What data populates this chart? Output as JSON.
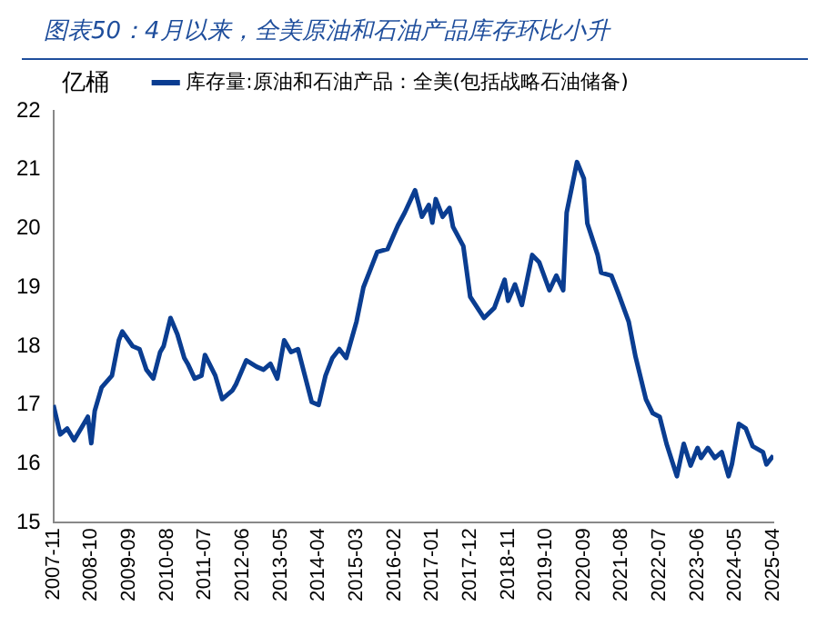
{
  "chart_data": {
    "type": "line",
    "title": "图表50：4月以来，全美原油和石油产品库存环比小升",
    "ylabel": "亿桶",
    "legend": "top",
    "series": [
      {
        "name": "库存量:原油和石油产品：全美(包括战略石油储备)",
        "color": "#0a3d91",
        "x": [
          "2007-11",
          "2008-01",
          "2008-03",
          "2008-05",
          "2008-07",
          "2008-09",
          "2008-10",
          "2008-11",
          "2009-01",
          "2009-04",
          "2009-06",
          "2009-07",
          "2009-10",
          "2009-12",
          "2010-02",
          "2010-04",
          "2010-06",
          "2010-07",
          "2010-09",
          "2010-11",
          "2011-01",
          "2011-02",
          "2011-04",
          "2011-06",
          "2011-07",
          "2011-10",
          "2011-12",
          "2012-03",
          "2012-04",
          "2012-07",
          "2012-10",
          "2012-12",
          "2013-02",
          "2013-04",
          "2013-06",
          "2013-08",
          "2013-10",
          "2013-12",
          "2014-02",
          "2014-04",
          "2014-06",
          "2014-08",
          "2014-10",
          "2014-12",
          "2015-03",
          "2015-05",
          "2015-07",
          "2015-09",
          "2015-12",
          "2016-03",
          "2016-05",
          "2016-08",
          "2016-10",
          "2016-12",
          "2017-01",
          "2017-02",
          "2017-04",
          "2017-06",
          "2017-07",
          "2017-10",
          "2017-12",
          "2018-04",
          "2018-07",
          "2018-10",
          "2018-11",
          "2019-01",
          "2019-03",
          "2019-06",
          "2019-08",
          "2019-11",
          "2020-01",
          "2020-03",
          "2020-04",
          "2020-07",
          "2020-09",
          "2020-10",
          "2021-01",
          "2021-02",
          "2021-05",
          "2021-07",
          "2021-10",
          "2021-12",
          "2022-03",
          "2022-05",
          "2022-07",
          "2022-09",
          "2022-12",
          "2023-02",
          "2023-04",
          "2023-06",
          "2023-07",
          "2023-09",
          "2023-11",
          "2024-01",
          "2024-03",
          "2024-04",
          "2024-06",
          "2024-08",
          "2024-10",
          "2025-01",
          "2025-02",
          "2025-04"
        ],
        "values": [
          17.0,
          16.5,
          16.6,
          16.4,
          16.6,
          16.8,
          16.35,
          16.9,
          17.3,
          17.5,
          18.1,
          18.25,
          18.0,
          17.95,
          17.6,
          17.45,
          17.9,
          18.0,
          18.48,
          18.2,
          17.8,
          17.7,
          17.45,
          17.5,
          17.85,
          17.5,
          17.1,
          17.25,
          17.35,
          17.76,
          17.65,
          17.6,
          17.7,
          17.45,
          18.1,
          17.9,
          17.95,
          17.5,
          17.05,
          17.0,
          17.5,
          17.8,
          17.95,
          17.8,
          18.42,
          19.0,
          19.3,
          19.6,
          19.65,
          20.05,
          20.27,
          20.65,
          20.2,
          20.4,
          20.1,
          20.5,
          20.2,
          20.35,
          20.03,
          19.7,
          18.84,
          18.48,
          18.65,
          19.13,
          18.77,
          19.05,
          18.7,
          19.55,
          19.43,
          18.95,
          19.2,
          18.95,
          20.27,
          21.13,
          20.85,
          20.09,
          19.55,
          19.25,
          19.2,
          18.9,
          18.42,
          17.82,
          17.1,
          16.86,
          16.8,
          16.34,
          15.79,
          16.34,
          15.97,
          16.27,
          16.1,
          16.27,
          16.1,
          16.2,
          15.79,
          16.0,
          16.68,
          16.6,
          16.3,
          16.2,
          15.99,
          16.14
        ]
      }
    ],
    "xlim": [
      "2007-11",
      "2025-04"
    ],
    "xticks": [
      "2007-11",
      "2008-10",
      "2009-09",
      "2010-08",
      "2011-07",
      "2012-06",
      "2013-05",
      "2014-04",
      "2015-03",
      "2016-02",
      "2017-01",
      "2017-12",
      "2018-11",
      "2019-10",
      "2020-09",
      "2021-08",
      "2022-07",
      "2023-06",
      "2024-05",
      "2025-04"
    ],
    "ylim": [
      15,
      22
    ],
    "yticks": [
      15,
      16,
      17,
      18,
      19,
      20,
      21,
      22
    ],
    "grid": false
  }
}
